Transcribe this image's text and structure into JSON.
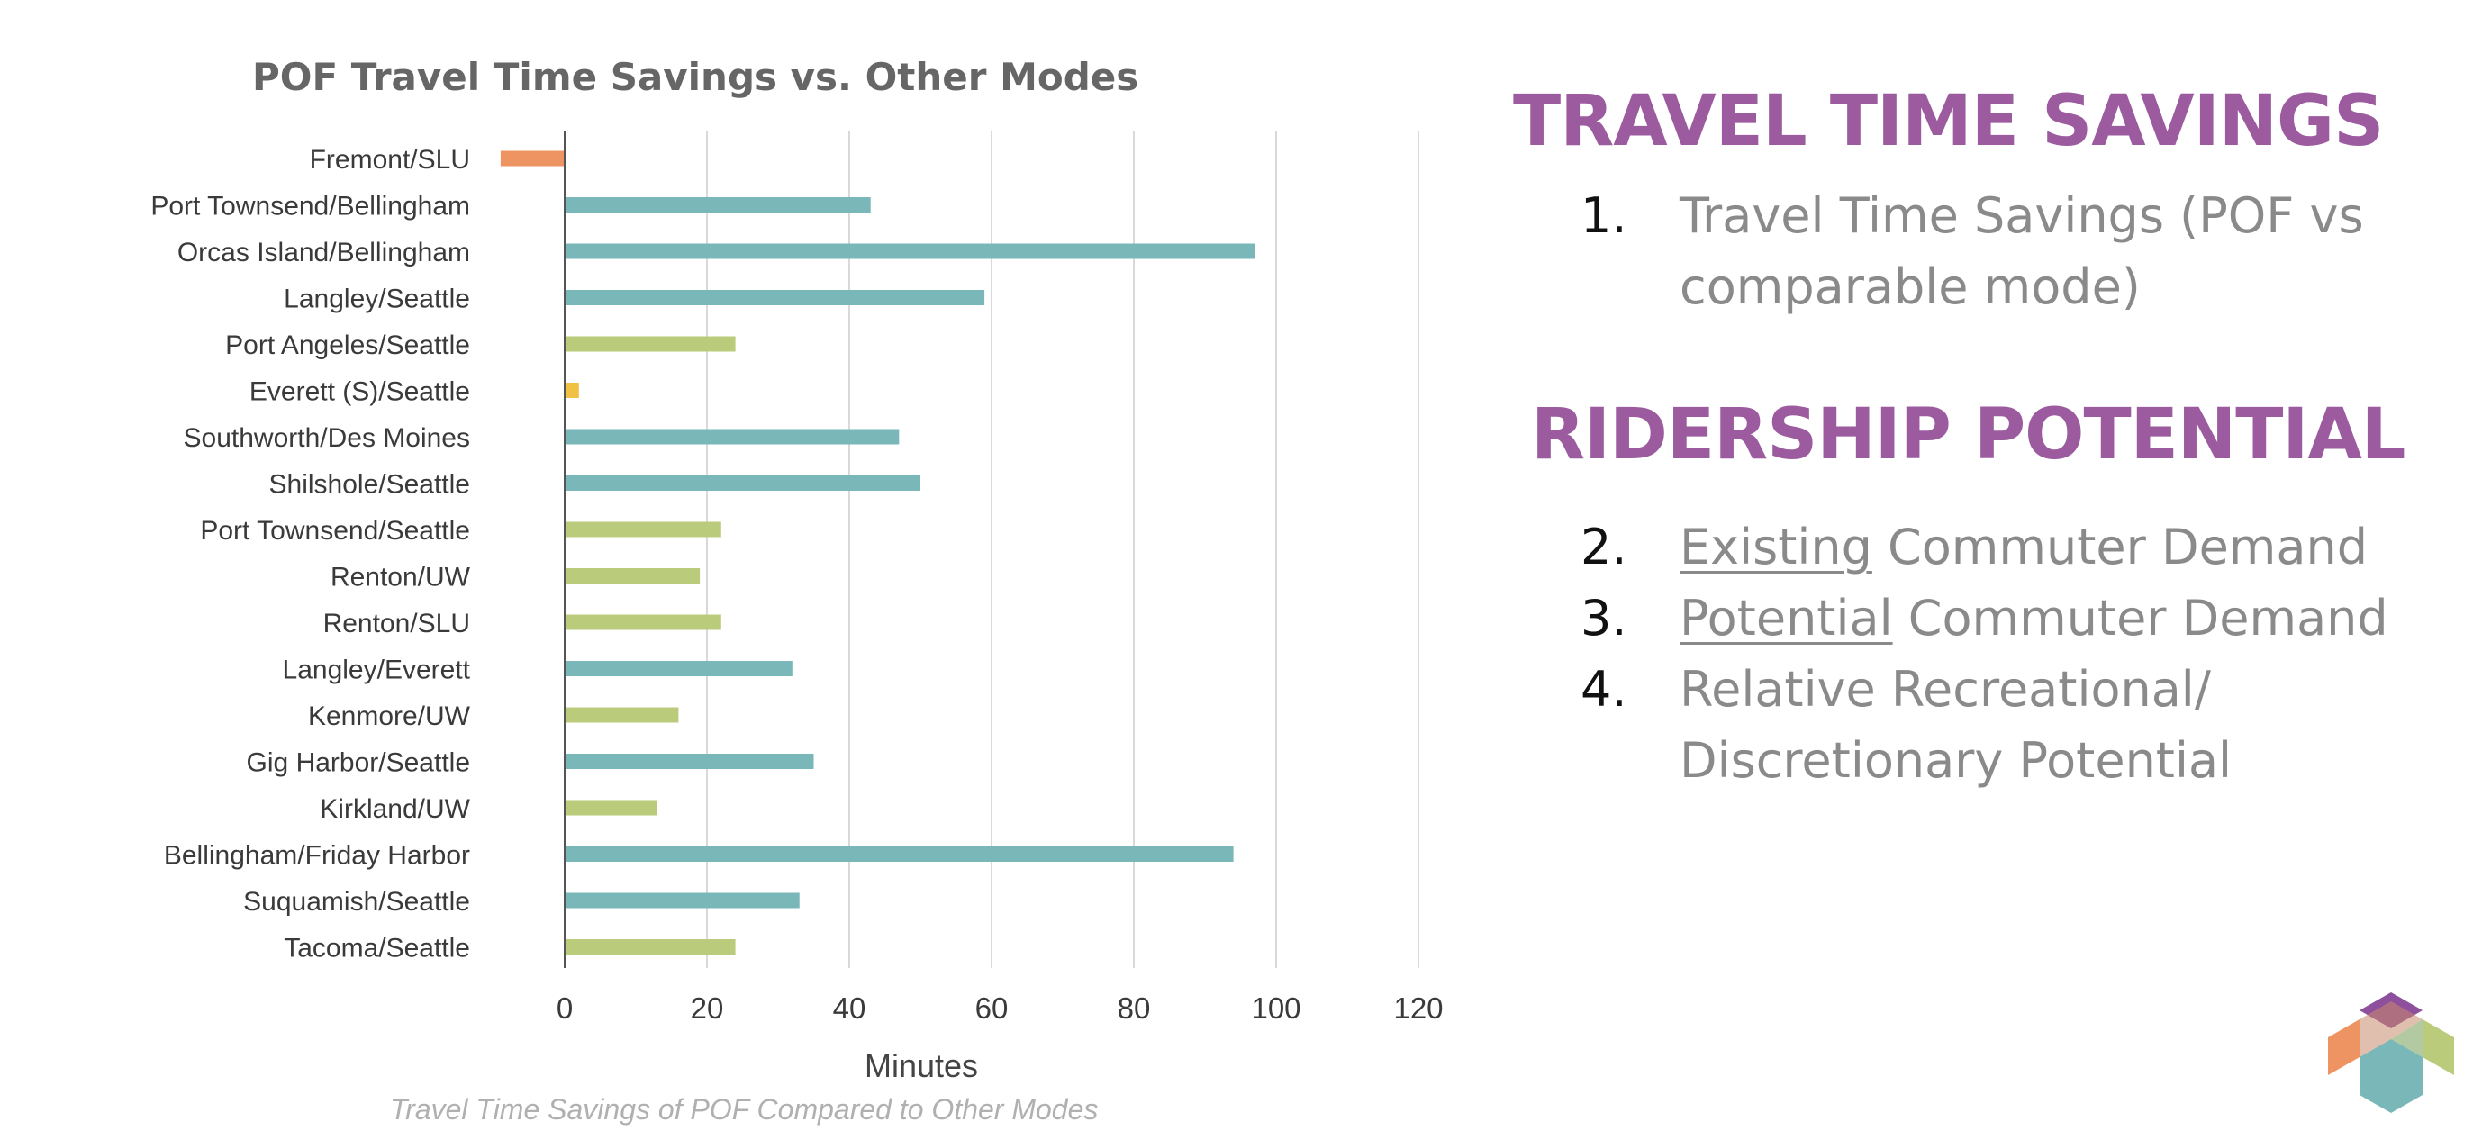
{
  "chart_data": {
    "type": "bar",
    "orientation": "horizontal",
    "title": "POF Travel Time Savings vs. Other Modes",
    "xlabel": "Minutes",
    "caption": "Travel Time Savings of POF Compared to Other Modes",
    "xlim": [
      -10,
      120
    ],
    "xticks": [
      0,
      20,
      40,
      60,
      80,
      100,
      120
    ],
    "grid": true,
    "categories": [
      "Fremont/SLU",
      "Port Townsend/Bellingham",
      "Orcas Island/Bellingham",
      "Langley/Seattle",
      "Port Angeles/Seattle",
      "Everett (S)/Seattle",
      "Southworth/Des Moines",
      "Shilshole/Seattle",
      "Port Townsend/Seattle",
      "Renton/UW",
      "Renton/SLU",
      "Langley/Everett",
      "Kenmore/UW",
      "Gig Harbor/Seattle",
      "Kirkland/UW",
      "Bellingham/Friday Harbor",
      "Suquamish/Seattle",
      "Tacoma/Seattle"
    ],
    "values": [
      -9,
      43,
      97,
      59,
      24,
      2,
      47,
      50,
      22,
      19,
      22,
      32,
      16,
      35,
      13,
      94,
      33,
      24
    ],
    "bar_colors": [
      "#ee9463",
      "#79b7b8",
      "#79b7b8",
      "#79b7b8",
      "#bacb7b",
      "#f0c142",
      "#79b7b8",
      "#79b7b8",
      "#bacb7b",
      "#bacb7b",
      "#bacb7b",
      "#79b7b8",
      "#bacb7b",
      "#79b7b8",
      "#bacb7b",
      "#79b7b8",
      "#79b7b8",
      "#bacb7b"
    ]
  },
  "right_panel": {
    "heading1": "TRAVEL TIME SAVINGS",
    "list1": [
      {
        "num": "1.",
        "text": "Travel Time Savings (POF vs comparable mode)"
      }
    ],
    "heading2": "RIDERSHIP POTENTIAL",
    "list2": [
      {
        "num": "2.",
        "underlined": "Existing",
        "rest": " Commuter Demand"
      },
      {
        "num": "3.",
        "underlined": "Potential",
        "rest": " Commuter Demand"
      },
      {
        "num": "4.",
        "text": "Relative Recreational/ Discretionary Potential"
      }
    ]
  },
  "colors": {
    "heading": "#9b5b9e",
    "list_text": "#8a8a8a",
    "teal": "#79b7b8",
    "green": "#bacb7b",
    "orange": "#ee9463",
    "yellow": "#f0c142"
  },
  "logo": {
    "icon": "cube-logo-icon"
  }
}
